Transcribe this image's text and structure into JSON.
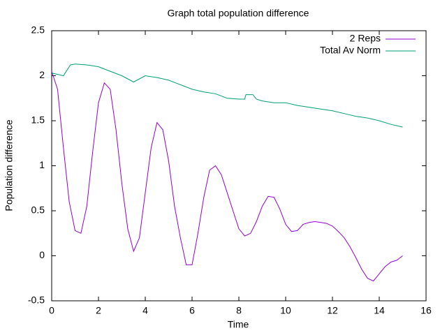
{
  "chart_data": {
    "type": "line",
    "title": "Graph total population difference",
    "x_label": "Time",
    "y_label": "Population difference",
    "xlim": [
      0,
      16
    ],
    "xticks": [
      0,
      2,
      4,
      6,
      8,
      10,
      12,
      14,
      16
    ],
    "ylim": [
      -0.5,
      2.5
    ],
    "yticks": [
      -0.5,
      0,
      0.5,
      1,
      1.5,
      2,
      2.5
    ],
    "legend": "top-right",
    "series": [
      {
        "name": "2 Reps",
        "color": "#9400d3",
        "x": [
          0,
          0.25,
          0.5,
          0.75,
          1,
          1.25,
          1.5,
          1.75,
          2,
          2.25,
          2.5,
          2.75,
          3,
          3.25,
          3.5,
          3.75,
          4,
          4.25,
          4.5,
          4.75,
          5,
          5.25,
          5.5,
          5.75,
          6,
          6.25,
          6.5,
          6.75,
          7,
          7.25,
          7.5,
          7.75,
          8,
          8.25,
          8.5,
          8.75,
          9,
          9.25,
          9.5,
          9.75,
          10,
          10.25,
          10.5,
          10.75,
          11,
          11.25,
          11.5,
          11.75,
          12,
          12.25,
          12.5,
          12.75,
          13,
          13.25,
          13.5,
          13.75,
          14,
          14.25,
          14.5,
          14.75,
          15
        ],
        "values": [
          2.05,
          1.85,
          1.2,
          0.6,
          0.28,
          0.25,
          0.55,
          1.15,
          1.7,
          1.92,
          1.85,
          1.4,
          0.8,
          0.3,
          0.05,
          0.2,
          0.7,
          1.2,
          1.48,
          1.4,
          1.05,
          0.55,
          0.2,
          -0.1,
          -0.1,
          0.25,
          0.65,
          0.95,
          1.0,
          0.9,
          0.7,
          0.5,
          0.3,
          0.22,
          0.25,
          0.38,
          0.55,
          0.66,
          0.65,
          0.52,
          0.35,
          0.27,
          0.28,
          0.35,
          0.37,
          0.38,
          0.37,
          0.36,
          0.33,
          0.27,
          0.2,
          0.1,
          -0.02,
          -0.15,
          -0.25,
          -0.28,
          -0.2,
          -0.12,
          -0.07,
          -0.05,
          0.0
        ]
      },
      {
        "name": "Total Av Norm",
        "color": "#009e73",
        "x": [
          0,
          0.5,
          0.8,
          1,
          1.5,
          2,
          2.5,
          3,
          3.5,
          4,
          4.5,
          5,
          5.5,
          6,
          6.5,
          7,
          7.5,
          8,
          8.25,
          8.3,
          8.6,
          8.75,
          9,
          9.5,
          10,
          10.5,
          11,
          11.5,
          12,
          12.5,
          13,
          13.5,
          14,
          14.5,
          15
        ],
        "values": [
          2.03,
          2.0,
          2.12,
          2.13,
          2.12,
          2.1,
          2.05,
          2.0,
          1.93,
          2.0,
          1.98,
          1.95,
          1.9,
          1.85,
          1.82,
          1.8,
          1.75,
          1.74,
          1.74,
          1.79,
          1.79,
          1.74,
          1.72,
          1.7,
          1.7,
          1.67,
          1.65,
          1.63,
          1.61,
          1.58,
          1.55,
          1.53,
          1.5,
          1.46,
          1.43
        ]
      }
    ]
  }
}
